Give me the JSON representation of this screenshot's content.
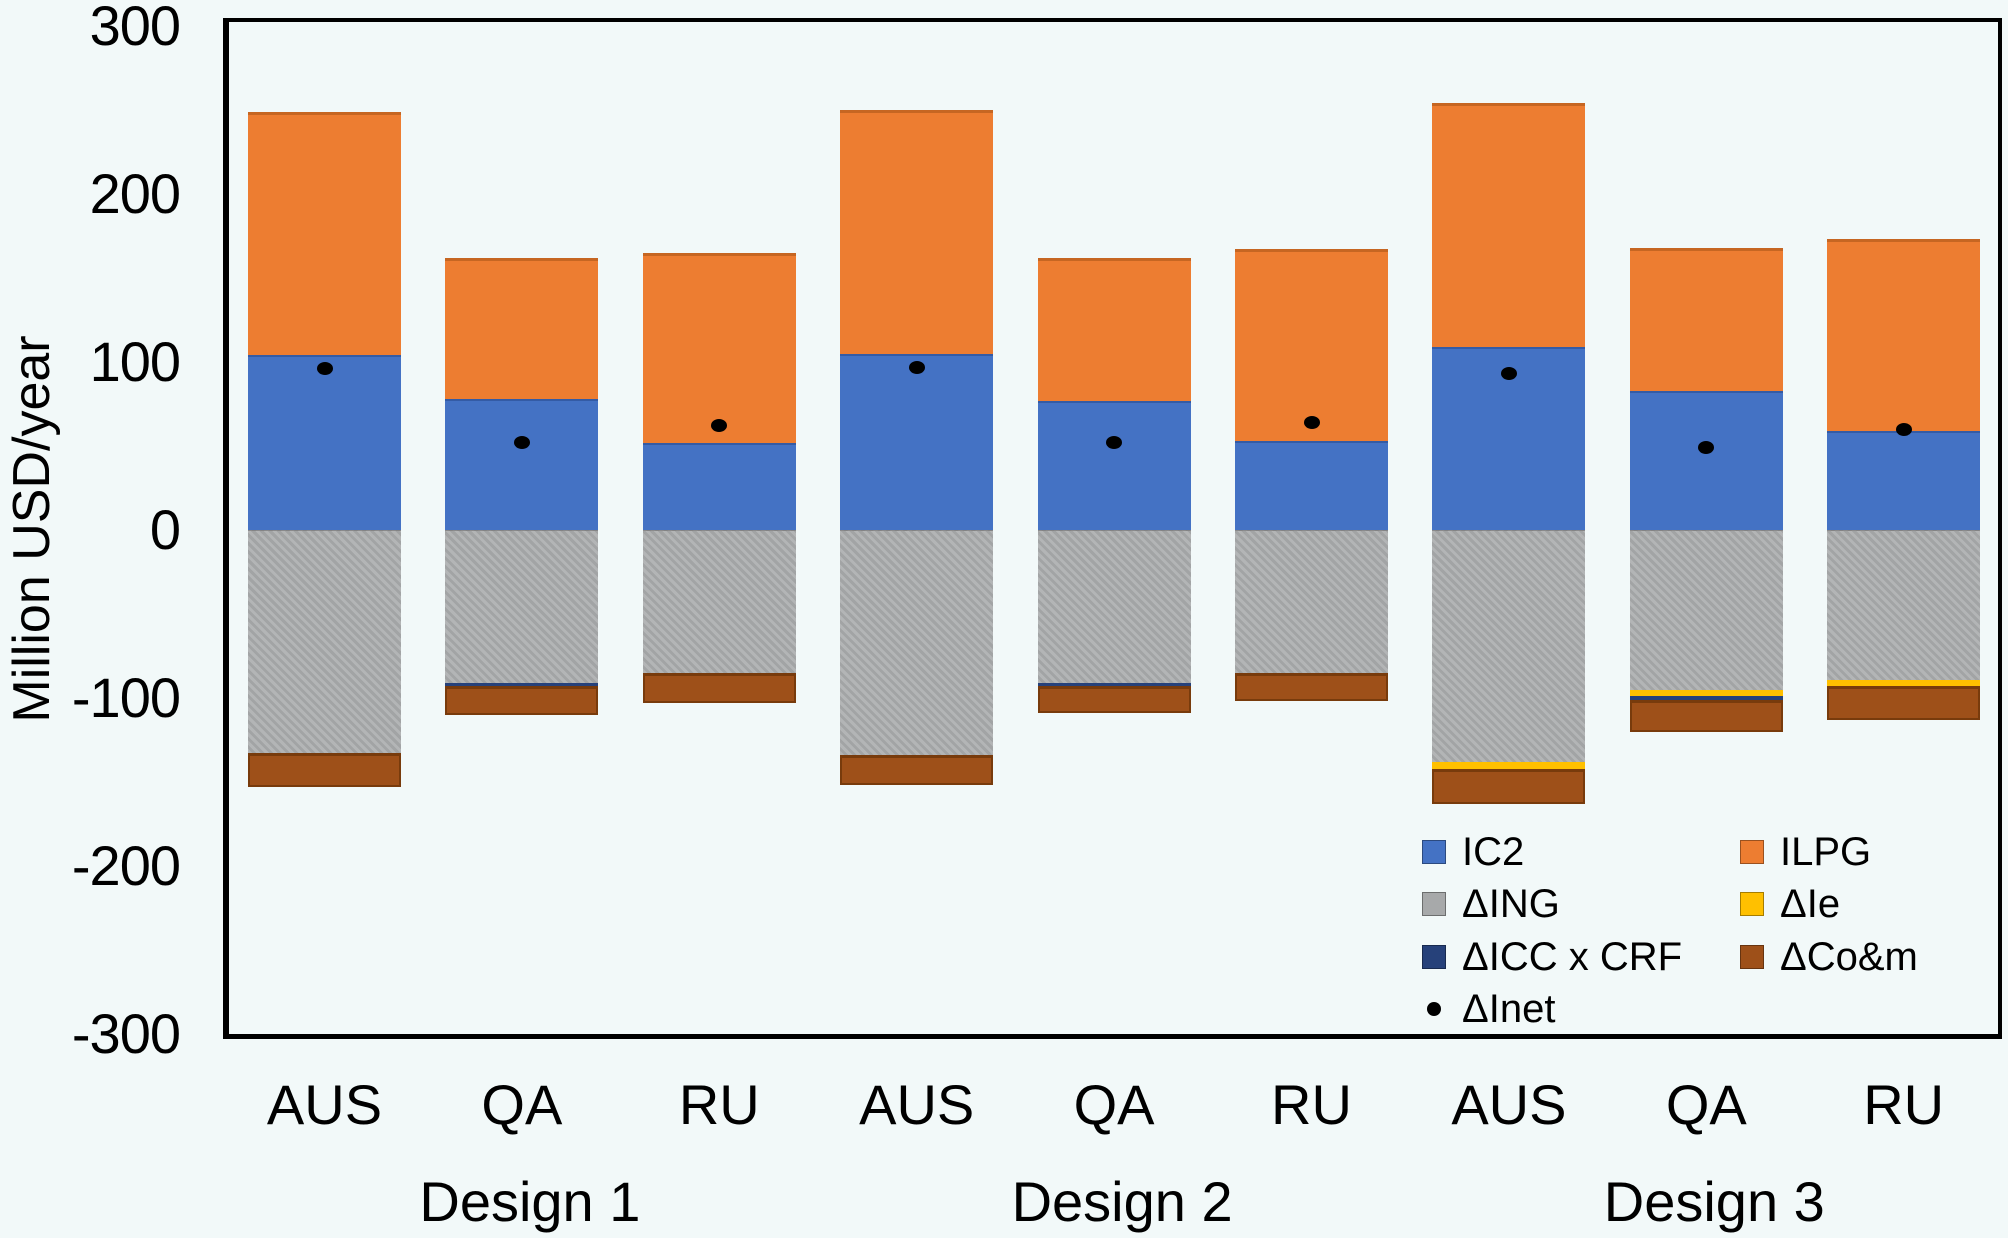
{
  "chart_data": {
    "type": "bar",
    "subtype": "stacked-bar-with-point-overlay",
    "title": "",
    "ylabel": "Million USD/year",
    "ylim": [
      -300,
      300
    ],
    "yticks": [
      300,
      200,
      100,
      0,
      -100,
      -200,
      -300
    ],
    "grid": false,
    "background": "#F2F9F9",
    "categories": [
      "AUS",
      "QA",
      "RU",
      "AUS",
      "QA",
      "RU",
      "AUS",
      "QA",
      "RU"
    ],
    "group_labels": [
      "Design 1",
      "Design 2",
      "Design 3"
    ],
    "series": [
      {
        "name": "IC2",
        "slug": "ic2",
        "color": "#4472C4",
        "values": [
          104,
          78,
          52,
          105,
          77,
          53,
          109,
          83,
          59
        ]
      },
      {
        "name": "ILPG",
        "slug": "ilpg",
        "color": "#ED7D31",
        "values": [
          145,
          84,
          113,
          145,
          85,
          114,
          145,
          85,
          114
        ]
      },
      {
        "name": "ΔING",
        "slug": "ding",
        "color": "#A7A9AA",
        "values": [
          -133,
          -91,
          -85,
          -134,
          -91,
          -85,
          -138,
          -95,
          -89
        ]
      },
      {
        "name": "ΔIe",
        "slug": "die",
        "color": "#FFC000",
        "values": [
          0,
          0,
          0,
          0,
          0,
          0,
          -4,
          -4,
          -4
        ]
      },
      {
        "name": "ΔICC x CRF",
        "slug": "dicc-crf",
        "color": "#26417A",
        "values": [
          0,
          -2,
          0,
          0,
          -2,
          0,
          0,
          -2,
          0
        ]
      },
      {
        "name": "ΔCo&m",
        "slug": "dcom",
        "color": "#9E5019",
        "values": [
          -20,
          -17,
          -18,
          -18,
          -16,
          -17,
          -21,
          -19,
          -20
        ]
      }
    ],
    "scatter": {
      "name": "ΔInet",
      "slug": "dinet",
      "color": "#000000",
      "values": [
        96,
        52,
        62,
        97,
        52,
        64,
        93,
        49,
        60
      ]
    },
    "legend_position": "inside-bottom-right"
  },
  "legend": {
    "items": [
      {
        "label": "IC2",
        "marker": "square",
        "color": "#4472C4"
      },
      {
        "label": "ILPG",
        "marker": "square",
        "color": "#ED7D31"
      },
      {
        "label": "ΔING",
        "marker": "square",
        "color": "#A7A9AA"
      },
      {
        "label": "ΔIe",
        "marker": "square",
        "color": "#FFC000"
      },
      {
        "label": "ΔICC x CRF",
        "marker": "square",
        "color": "#26417A"
      },
      {
        "label": "ΔCo&m",
        "marker": "square",
        "color": "#9E5019"
      },
      {
        "label": "ΔInet",
        "marker": "dot",
        "color": "#000000"
      }
    ]
  }
}
